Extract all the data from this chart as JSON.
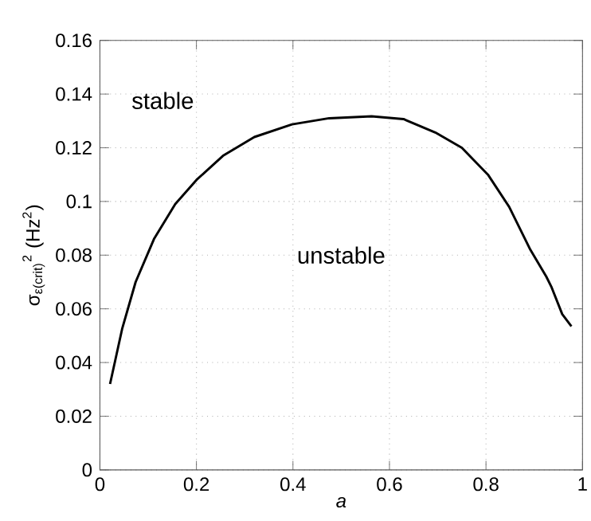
{
  "chart_data": {
    "type": "line",
    "xlabel": "a",
    "ylabel": "σ$_{ε(crit)}$$^{2}$ (Hz$^{2}$)",
    "annotations": [
      "stable",
      "unstable"
    ],
    "x": [
      0.021,
      0.046,
      0.074,
      0.112,
      0.156,
      0.2,
      0.255,
      0.32,
      0.398,
      0.475,
      0.563,
      0.629,
      0.695,
      0.75,
      0.804,
      0.848,
      0.892,
      0.925,
      0.936,
      0.958,
      0.977
    ],
    "series": [
      {
        "color": "#000000",
        "values": [
          0.032,
          0.0525,
          0.07,
          0.086,
          0.099,
          0.108,
          0.117,
          0.124,
          0.1287,
          0.131,
          0.1317,
          0.1307,
          0.1257,
          0.12,
          0.11,
          0.098,
          0.082,
          0.072,
          0.068,
          0.058,
          0.0535
        ]
      }
    ],
    "xlim": [
      0,
      1
    ],
    "ylim": [
      0,
      0.16
    ],
    "xticks": [
      0,
      0.2,
      0.4,
      0.6,
      0.8,
      1
    ],
    "yticks": [
      0,
      0.02,
      0.04,
      0.06,
      0.08,
      0.1,
      0.12,
      0.14,
      0.16
    ],
    "grid": true,
    "line_style": "solid",
    "marker": "none"
  }
}
